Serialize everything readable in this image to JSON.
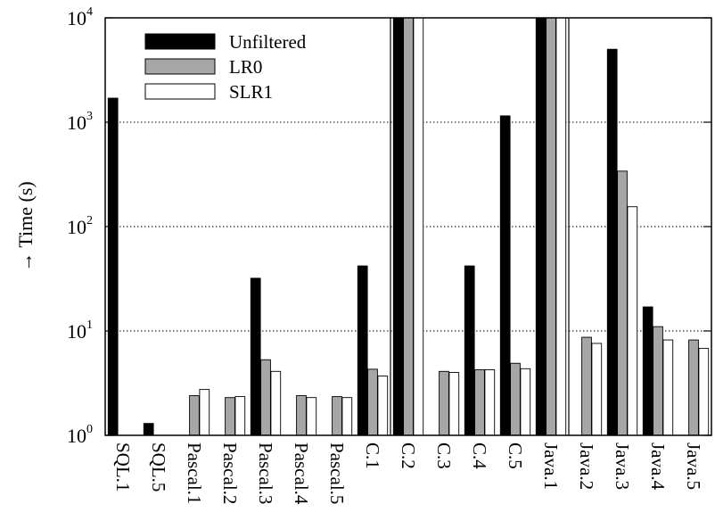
{
  "chart_data": {
    "type": "bar",
    "ylabel": "→ Time (s)",
    "yscale": "log",
    "ylim": [
      1,
      10000
    ],
    "yticks": [
      {
        "value": 1,
        "base": "10",
        "exp": "0"
      },
      {
        "value": 10,
        "base": "10",
        "exp": "1"
      },
      {
        "value": 100,
        "base": "10",
        "exp": "2"
      },
      {
        "value": 1000,
        "base": "10",
        "exp": "3"
      },
      {
        "value": 10000,
        "base": "10",
        "exp": "4"
      }
    ],
    "grid": "horizontal dotted",
    "legend_position": "top-left",
    "categories": [
      "SQL.1",
      "SQL.5",
      "Pascal.1",
      "Pascal.2",
      "Pascal.3",
      "Pascal.4",
      "Pascal.5",
      "C.1",
      "C.2",
      "C.3",
      "C.4",
      "C.5",
      "Java.1",
      "Java.2",
      "Java.3",
      "Java.4",
      "Java.5"
    ],
    "group_separators_after": [
      "C.1",
      "Java.1"
    ],
    "series": [
      {
        "name": "Unfiltered",
        "color": "#000000",
        "values": [
          1700,
          1.3,
          null,
          null,
          32,
          null,
          null,
          42,
          10000,
          null,
          42,
          1150,
          10000,
          null,
          5000,
          17,
          null
        ]
      },
      {
        "name": "LR0",
        "color": "#a6a6a6",
        "values": [
          null,
          null,
          2.4,
          2.3,
          5.3,
          2.4,
          2.35,
          4.3,
          10000,
          4.1,
          4.25,
          4.9,
          10000,
          8.7,
          340,
          11,
          8.2
        ]
      },
      {
        "name": "SLR1",
        "color": "#ffffff",
        "values": [
          null,
          null,
          2.75,
          2.35,
          4.1,
          2.3,
          2.3,
          3.7,
          10000,
          4.0,
          4.25,
          4.35,
          10000,
          7.6,
          155,
          8.2,
          6.8
        ]
      }
    ]
  }
}
